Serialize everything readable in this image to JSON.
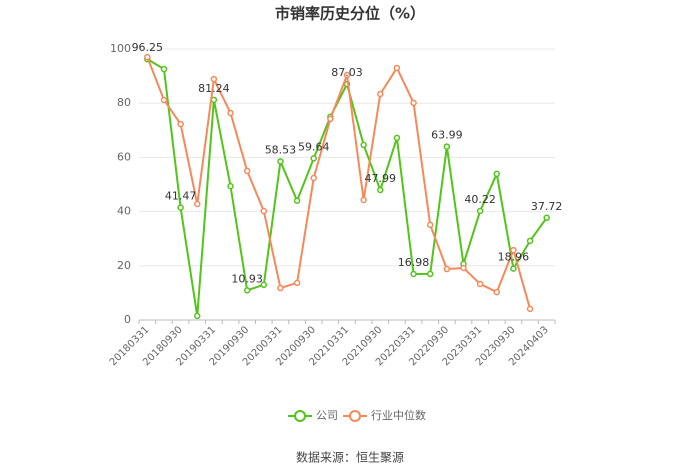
{
  "chart_data": {
    "type": "line",
    "title": "市销率历史分位（%）",
    "categories": [
      "20180331",
      null,
      "20180930",
      null,
      "20190331",
      null,
      "20190930",
      null,
      "20200331",
      null,
      "20200930",
      null,
      "20210331",
      null,
      "20210930",
      null,
      "20220331",
      null,
      "20220930",
      null,
      "20230331",
      null,
      "20230930",
      null,
      "20240403"
    ],
    "series": [
      {
        "name": "公司",
        "color": "#52c41a",
        "values": [
          96.25,
          92.6,
          41.47,
          1.5,
          81.24,
          49.4,
          10.93,
          13,
          58.53,
          44,
          59.64,
          75,
          87.03,
          64.6,
          47.99,
          67.2,
          16.98,
          17,
          63.99,
          20.7,
          40.22,
          53.9,
          18.96,
          29.2,
          37.72
        ]
      },
      {
        "name": "行业中位数",
        "color": "#f5895a",
        "values": [
          97,
          81.2,
          72.3,
          42.8,
          88.9,
          76.4,
          55,
          40.2,
          11.8,
          13.7,
          52.4,
          74.2,
          90.4,
          44.3,
          83.4,
          93,
          80.1,
          35.1,
          18.8,
          19.2,
          13.3,
          10.3,
          25.8,
          4.1,
          null
        ]
      }
    ],
    "ylim": [
      0,
      100
    ],
    "yticks": [
      0,
      20,
      40,
      60,
      80,
      100
    ],
    "grid": true,
    "source": "数据来源：恒生聚源"
  }
}
